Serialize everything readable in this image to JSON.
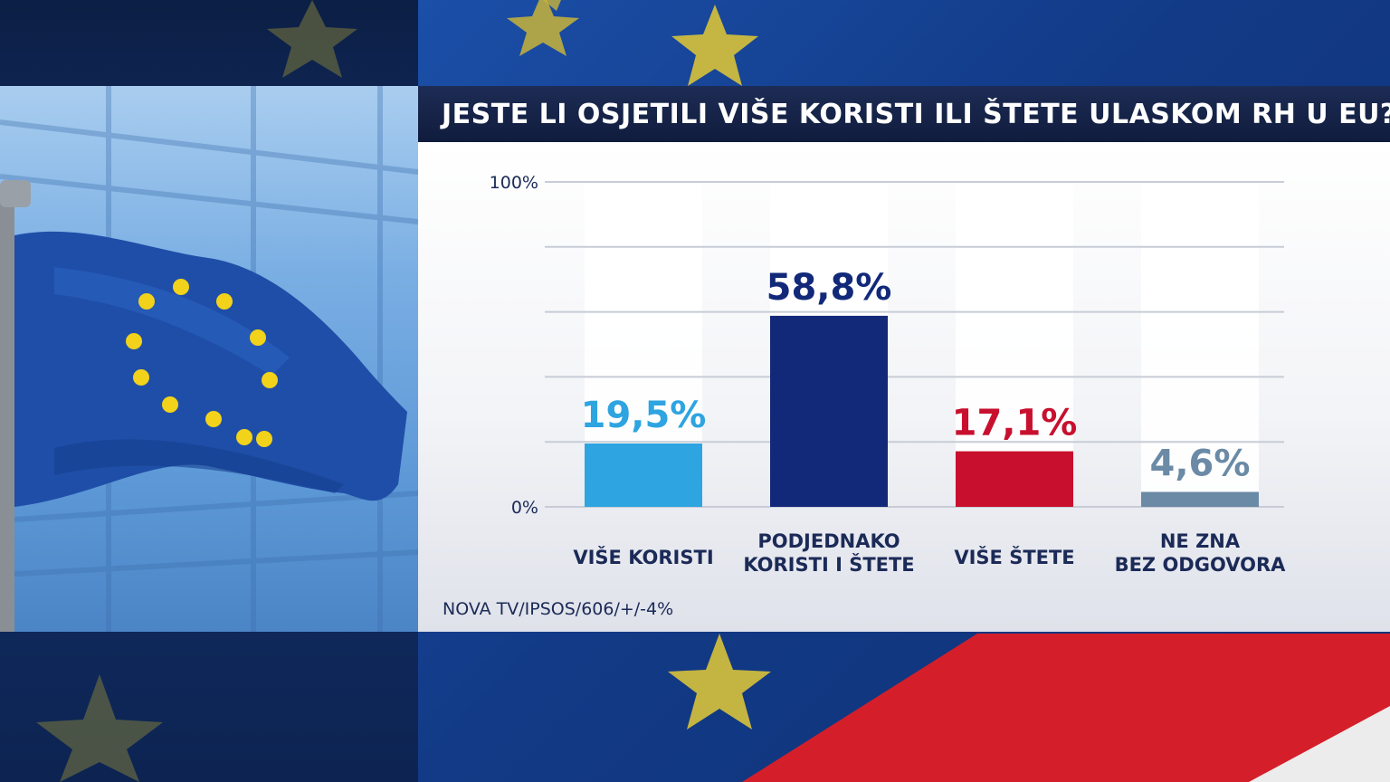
{
  "title": "JESTE LI OSJETILI VIŠE KORISTI ILI ŠTETE ULASKOM RH U EU?",
  "source": "NOVA TV/IPSOS/606/+/-4%",
  "chart_data": {
    "type": "bar",
    "title": "JESTE LI OSJETILI VIŠE KORISTI ILI ŠTETE ULASKOM RH U EU?",
    "categories": [
      [
        "VIŠE KORISTI"
      ],
      [
        "PODJEDNAKO",
        "KORISTI I ŠTETE"
      ],
      [
        "VIŠE ŠTETE"
      ],
      [
        "NE ZNA",
        "BEZ ODGOVORA"
      ]
    ],
    "values": [
      19.5,
      58.8,
      17.1,
      4.6
    ],
    "value_labels": [
      "19,5%",
      "58,8%",
      "17,1%",
      "4,6%"
    ],
    "colors": [
      "#2ea4e0",
      "#12297a",
      "#c8102e",
      "#6a8aa6"
    ],
    "y_ticks": [
      "100%",
      "0%"
    ],
    "ylim": [
      0,
      100
    ],
    "grid": true
  }
}
